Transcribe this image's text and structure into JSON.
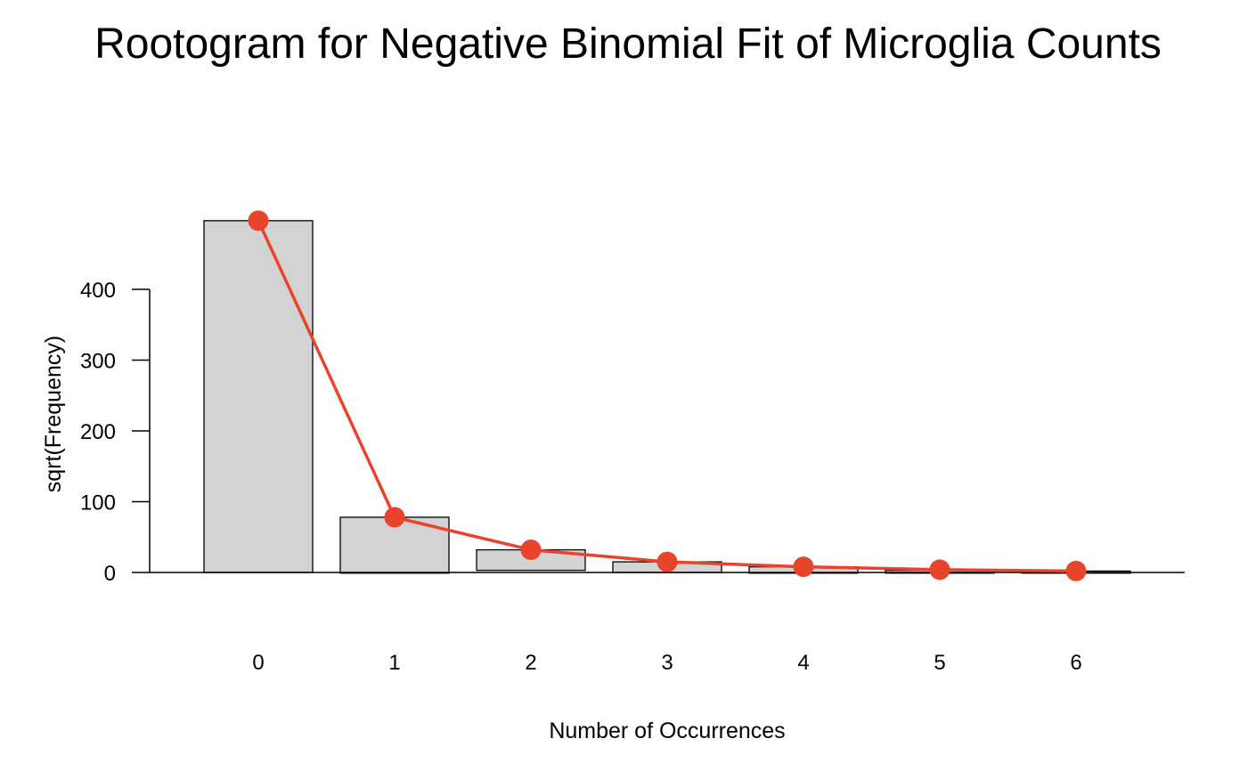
{
  "chart_data": {
    "type": "bar",
    "title": "Rootogram for Negative Binomial Fit of Microglia Counts",
    "xlabel": "Number of Occurrences",
    "ylabel": "sqrt(Frequency)",
    "categories": [
      "0",
      "1",
      "2",
      "3",
      "4",
      "5",
      "6"
    ],
    "ylim": [
      -150,
      500
    ],
    "yticks": [
      0,
      100,
      200,
      300,
      400
    ],
    "bars": [
      {
        "x": "0",
        "top": 497,
        "bottom": 0
      },
      {
        "x": "1",
        "top": 78,
        "bottom": -1
      },
      {
        "x": "2",
        "top": 32,
        "bottom": 3
      },
      {
        "x": "3",
        "top": 15,
        "bottom": 0
      },
      {
        "x": "4",
        "top": 8,
        "bottom": -1
      },
      {
        "x": "5",
        "top": 3,
        "bottom": -1
      },
      {
        "x": "6",
        "top": 2,
        "bottom": -1
      }
    ],
    "fitted": {
      "values": [
        497,
        78,
        32,
        15,
        8,
        4,
        2
      ],
      "color": "#e8442c"
    },
    "bar_fill": "#d3d3d3",
    "grid": false
  }
}
